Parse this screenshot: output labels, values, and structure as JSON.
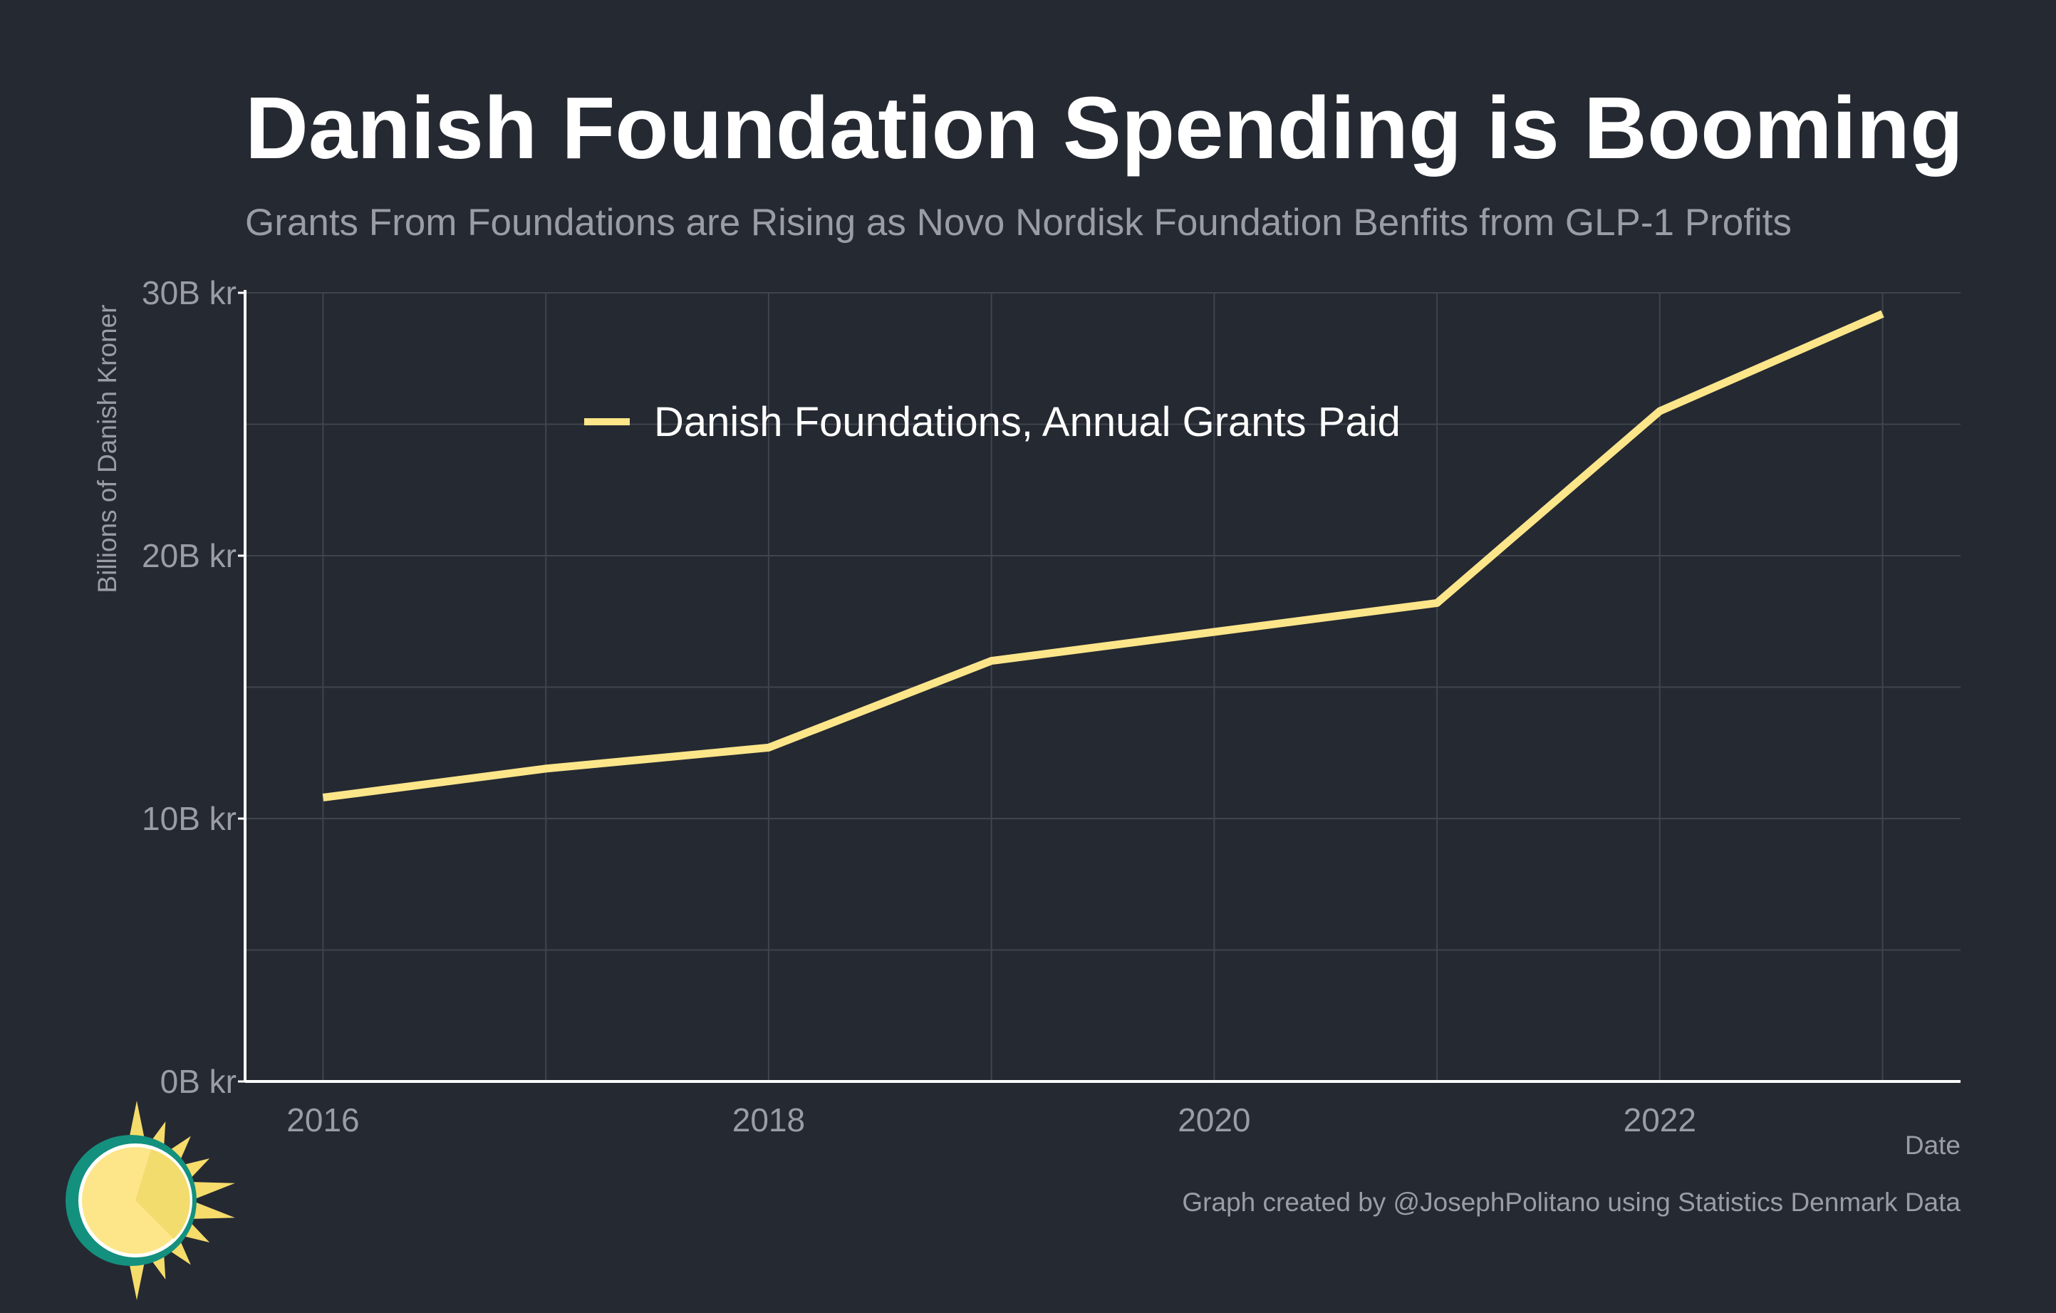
{
  "colors": {
    "background": "#252932",
    "series": "#fde68a",
    "grid": "#40444c",
    "muted_text": "#9a9da4",
    "logo_ring": "#14907e",
    "logo_sun": "#fde68a",
    "logo_rays": "#f6dc6a"
  },
  "logo": {
    "icon": "sun-icon"
  },
  "chart_data": {
    "type": "line",
    "title": "Danish Foundation Spending is Booming",
    "subtitle": "Grants From Foundations are Rising as Novo Nordisk Foundation Benfits from GLP-1 Profits",
    "xlabel": "Date",
    "ylabel": "Billions of Danish Kroner",
    "caption": "Graph created by @JosephPolitano using Statistics Denmark Data",
    "x": [
      2016,
      2017,
      2018,
      2019,
      2020,
      2021,
      2022,
      2023
    ],
    "x_ticks": [
      "2016",
      "2018",
      "2020",
      "2022"
    ],
    "x_tick_values": [
      2016,
      2018,
      2020,
      2022
    ],
    "xlim": [
      2015.65,
      2023.35
    ],
    "y_ticks": [
      "30B kr",
      "20B kr",
      "10B kr",
      "0B kr"
    ],
    "y_tick_values": [
      30,
      20,
      10,
      0
    ],
    "ylim": [
      0,
      30
    ],
    "grid": true,
    "legend_position": "top-left",
    "series": [
      {
        "name": "Danish Foundations, Annual Grants Paid",
        "values": [
          10.8,
          11.9,
          12.7,
          16.0,
          17.1,
          18.2,
          25.5,
          29.2
        ]
      }
    ]
  }
}
